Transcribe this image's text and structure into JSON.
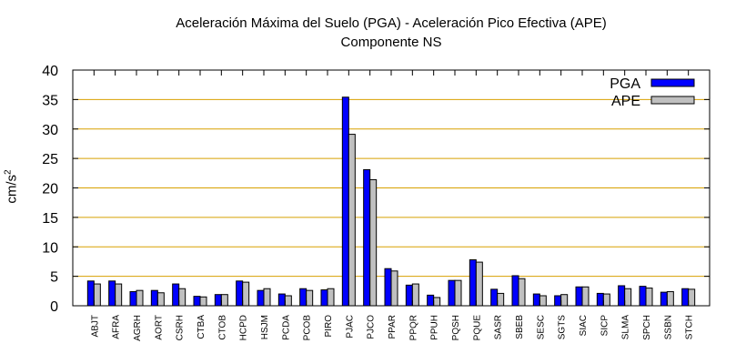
{
  "chart_data": {
    "type": "bar",
    "title": "Aceleración Máxima del Suelo (PGA) -  Aceleración Pico Efectiva (APE)",
    "subtitle": "Componente NS",
    "ylabel_base": "cm/s",
    "ylabel_sup": "2",
    "ylim": [
      0,
      40
    ],
    "yticks": [
      0,
      5,
      10,
      15,
      20,
      25,
      30,
      35,
      40
    ],
    "grid": true,
    "legend_position": "top-right",
    "categories": [
      "ABJT",
      "AFRA",
      "AGRH",
      "AORT",
      "CSRH",
      "CTBA",
      "CTOB",
      "HCPD",
      "HSJM",
      "PCDA",
      "PCOB",
      "PIRO",
      "PJAC",
      "PJCO",
      "PPAR",
      "PPQR",
      "PPUH",
      "PQSH",
      "PQUE",
      "SASR",
      "SBEB",
      "SESC",
      "SGTS",
      "SIAC",
      "SICP",
      "SLMA",
      "SPCH",
      "SSBN",
      "STCH"
    ],
    "series": [
      {
        "name": "PGA",
        "color": "#0000ff",
        "values": [
          4.2,
          4.2,
          2.4,
          2.6,
          3.7,
          1.6,
          1.9,
          4.2,
          2.6,
          2.0,
          2.9,
          2.7,
          35.4,
          23.1,
          6.3,
          3.5,
          1.8,
          4.3,
          7.8,
          2.8,
          5.1,
          2.0,
          1.7,
          3.2,
          2.1,
          3.4,
          3.3,
          2.3,
          2.9
        ]
      },
      {
        "name": "APE",
        "color": "#c0c0c0",
        "values": [
          3.7,
          3.7,
          2.6,
          2.2,
          2.9,
          1.5,
          1.9,
          4.0,
          2.9,
          1.7,
          2.6,
          2.9,
          29.1,
          21.4,
          5.9,
          3.7,
          1.4,
          4.3,
          7.4,
          2.1,
          4.6,
          1.7,
          1.9,
          3.2,
          2.0,
          2.9,
          3.0,
          2.4,
          2.8
        ]
      }
    ]
  }
}
